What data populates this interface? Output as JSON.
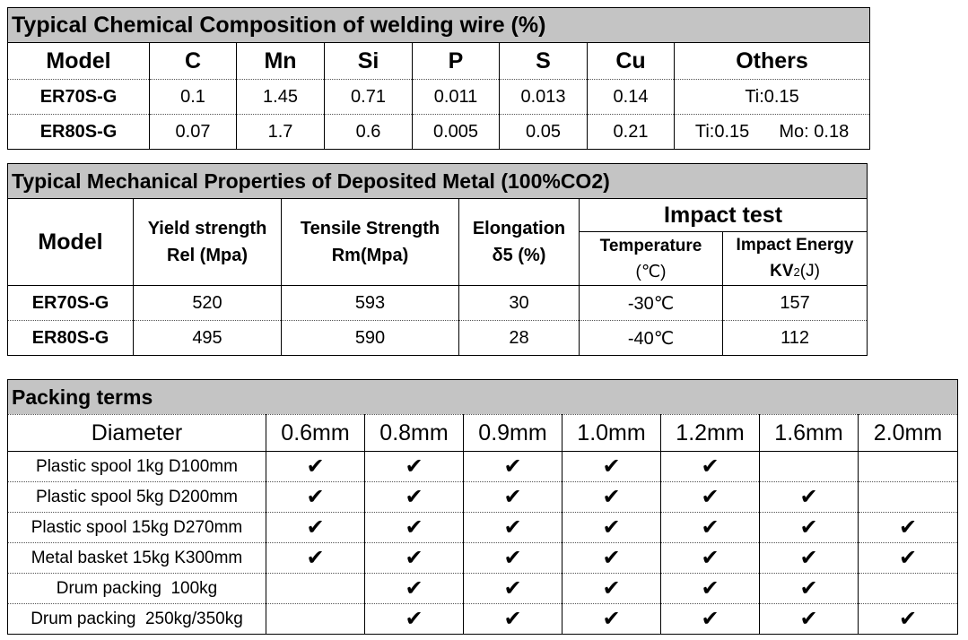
{
  "chem": {
    "title": "Typical Chemical Composition of welding wire (%)",
    "headers": [
      "Model",
      "C",
      "Mn",
      "Si",
      "P",
      "S",
      "Cu",
      "Others"
    ],
    "rows": [
      {
        "model": "ER70S-G",
        "c": "0.1",
        "mn": "1.45",
        "si": "0.71",
        "p": "0.011",
        "s": "0.013",
        "cu": "0.14",
        "others_a": "Ti:0.15",
        "others_b": ""
      },
      {
        "model": "ER80S-G",
        "c": "0.07",
        "mn": "1.7",
        "si": "0.6",
        "p": "0.005",
        "s": "0.05",
        "cu": "0.21",
        "others_a": "Ti:0.15",
        "others_b": "Mo: 0.18"
      }
    ]
  },
  "mech": {
    "title": "Typical Mechanical Properties of Deposited Metal (100%CO2)",
    "model_header": "Model",
    "yield_header_1": "Yield strength",
    "yield_header_2": "Rel (Mpa)",
    "tensile_header_1": "Tensile Strength",
    "tensile_header_2": "Rm(Mpa)",
    "elong_header_1": "Elongation",
    "elong_header_2": "δ5 (%)",
    "impact_header": "Impact test",
    "temp_header_1": "Temperature",
    "temp_header_2": "(℃)",
    "energy_header_1": "Impact Energy",
    "energy_header_2a": "KV",
    "energy_header_2b": "2",
    "energy_header_2c": "(J)",
    "rows": [
      {
        "model": "ER70S-G",
        "yield": "520",
        "tensile": "593",
        "elong": "30",
        "temp": "-30℃",
        "energy": "157"
      },
      {
        "model": "ER80S-G",
        "yield": "495",
        "tensile": "590",
        "elong": "28",
        "temp": "-40℃",
        "energy": "112"
      }
    ]
  },
  "packing": {
    "title": "Packing terms",
    "diameter_header": "Diameter",
    "diameters": [
      "0.6mm",
      "0.8mm",
      "0.9mm",
      "1.0mm",
      "1.2mm",
      "1.6mm",
      "2.0mm"
    ],
    "check_glyph": "✔",
    "rows": [
      {
        "label": "Plastic spool 1kg D100mm",
        "checks": [
          true,
          true,
          true,
          true,
          true,
          false,
          false
        ]
      },
      {
        "label": "Plastic spool 5kg D200mm",
        "checks": [
          true,
          true,
          true,
          true,
          true,
          true,
          false
        ]
      },
      {
        "label": "Plastic spool 15kg D270mm",
        "checks": [
          true,
          true,
          true,
          true,
          true,
          true,
          true
        ]
      },
      {
        "label": "Metal basket 15kg K300mm",
        "checks": [
          true,
          true,
          true,
          true,
          true,
          true,
          true
        ]
      },
      {
        "label": "Drum packing  100kg",
        "checks": [
          false,
          true,
          true,
          true,
          true,
          true,
          false
        ]
      },
      {
        "label": "Drum packing  250kg/350kg",
        "checks": [
          false,
          true,
          true,
          true,
          true,
          true,
          true
        ]
      }
    ]
  }
}
